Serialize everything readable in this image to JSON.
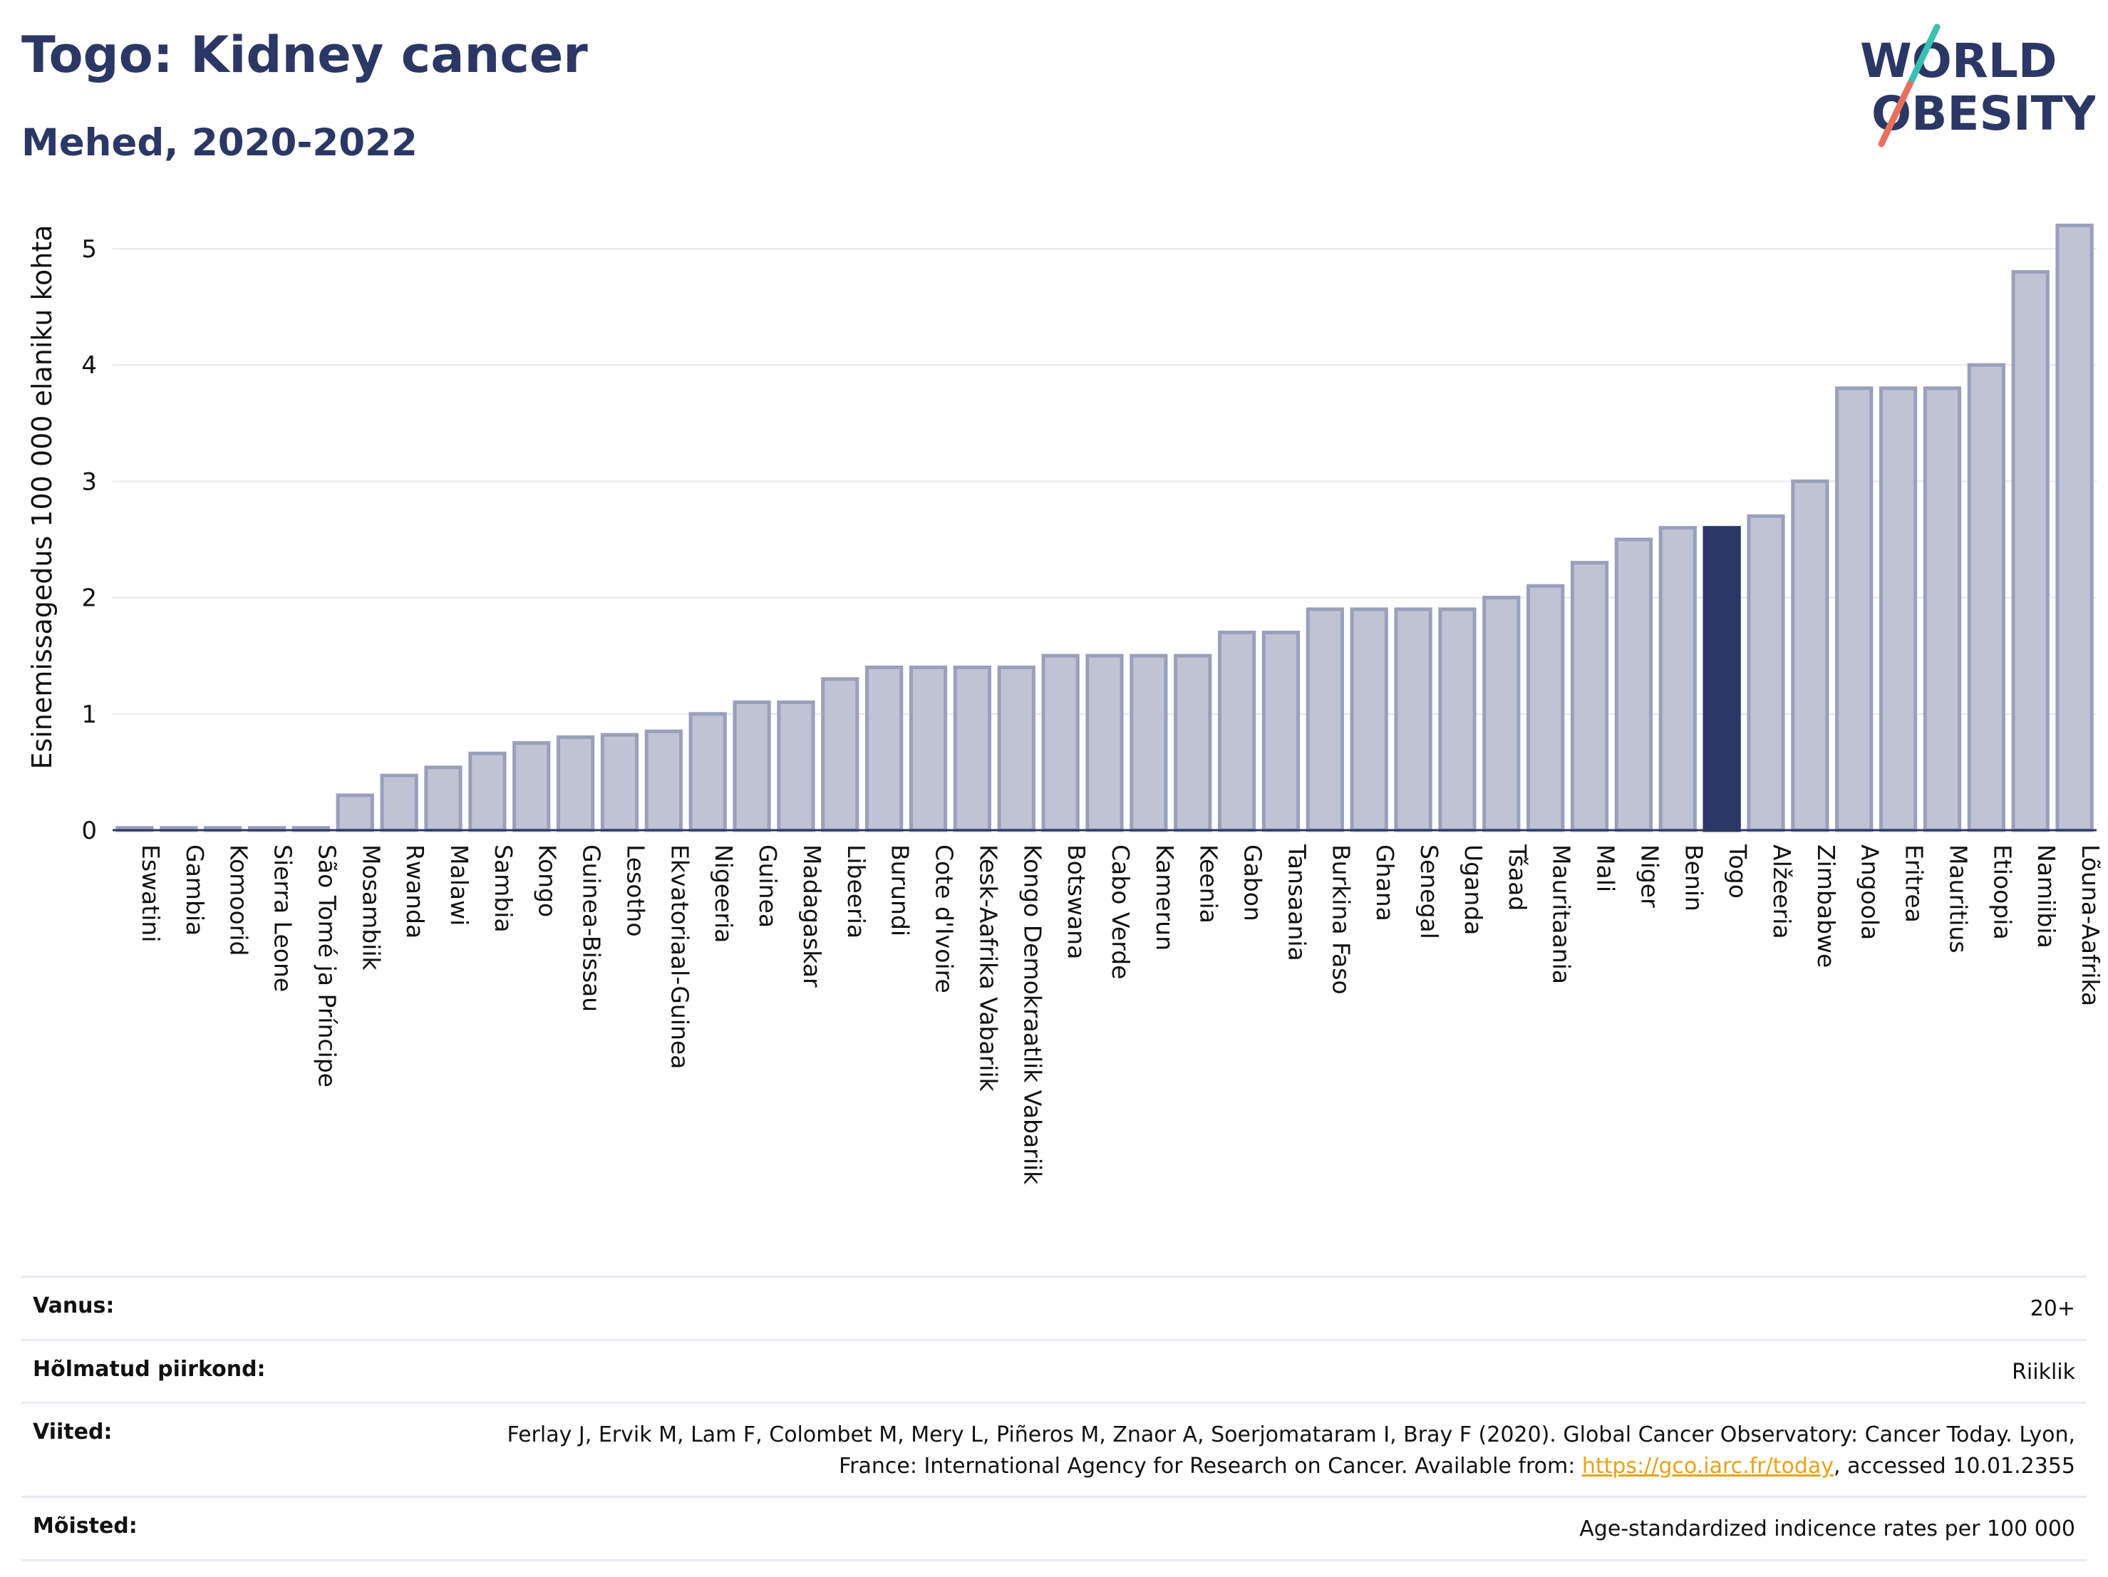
{
  "header": {
    "title": "Togo: Kidney cancer",
    "subtitle": "Mehed, 2020-2022",
    "logo_line1": "WORLD",
    "logo_line2": "OBESITY"
  },
  "colors": {
    "bar": "#bfc3d3",
    "bar_stroke": "#9aa0bb",
    "highlight": "#2b3764",
    "grid": "#e6e7ee",
    "link": "#e8a317",
    "logo_teal": "#3bbfb0",
    "logo_coral": "#e8705b"
  },
  "chart_data": {
    "type": "bar",
    "ylabel": "Esinemissagedus 100 000 elaniku kohta",
    "ylim": [
      0,
      5.3
    ],
    "yticks": [
      0,
      1,
      2,
      3,
      4,
      5
    ],
    "highlight": "Togo",
    "categories": [
      "Eswatini",
      "Gambia",
      "Komoorid",
      "Sierra Leone",
      "São Tomé ja Príncipe",
      "Mosambiik",
      "Rwanda",
      "Malawi",
      "Sambia",
      "Kongo",
      "Guinea-Bissau",
      "Lesotho",
      "Ekvatoriaal-Guinea",
      "Nigeeria",
      "Guinea",
      "Madagaskar",
      "Libeeria",
      "Burundi",
      "Cote d'Ivoire",
      "Kesk-Aafrika Vabariik",
      "Kongo Demokraatlik Vabariik",
      "Botswana",
      "Cabo Verde",
      "Kamerun",
      "Keenia",
      "Gabon",
      "Tansaania",
      "Burkina Faso",
      "Ghana",
      "Senegal",
      "Uganda",
      "Tšaad",
      "Mauritaania",
      "Mali",
      "Niger",
      "Benin",
      "Togo",
      "Alžeeria",
      "Zimbabwe",
      "Angoola",
      "Eritrea",
      "Mauritius",
      "Etioopia",
      "Namiibia",
      "Lõuna-Aafrika"
    ],
    "values": [
      0.02,
      0.02,
      0.02,
      0.02,
      0.02,
      0.3,
      0.47,
      0.54,
      0.66,
      0.75,
      0.8,
      0.82,
      0.85,
      1.0,
      1.1,
      1.1,
      1.3,
      1.4,
      1.4,
      1.4,
      1.4,
      1.5,
      1.5,
      1.5,
      1.5,
      1.7,
      1.7,
      1.9,
      1.9,
      1.9,
      1.9,
      2.0,
      2.1,
      2.3,
      2.5,
      2.6,
      2.6,
      2.7,
      3.0,
      3.8,
      3.8,
      3.8,
      4.0,
      4.8,
      5.2
    ]
  },
  "meta": {
    "age_label": "Vanus:",
    "age_value": "20+",
    "region_label": "Hõlmatud piirkond:",
    "region_value": "Riiklik",
    "refs_label": "Viited:",
    "refs_text_1": "Ferlay J, Ervik M, Lam F, Colombet M, Mery L, Piñeros M, Znaor A, Soerjomataram I, Bray F (2020). Global Cancer Observatory: Cancer Today. Lyon, France: International Agency for Research on Cancer. Available from: ",
    "refs_link": "https://gco.iarc.fr/today",
    "refs_text_2": ", accessed 10.01.2355",
    "defs_label": "Mõisted:",
    "defs_value": "Age-standardized indicence rates per 100 000"
  }
}
